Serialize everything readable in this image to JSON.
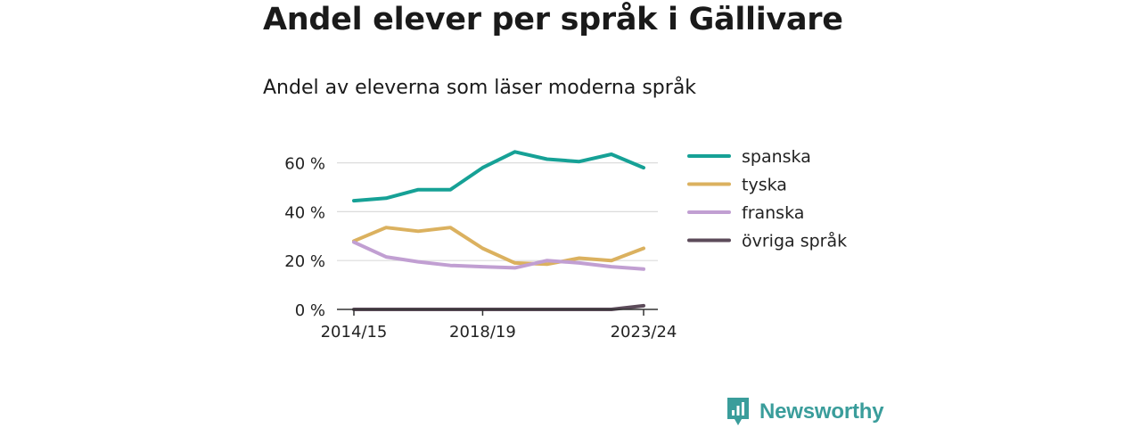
{
  "title": "Andel elever per språk i Gällivare",
  "subtitle": "Andel av eleverna som läser moderna språk",
  "brand": "Newsworthy",
  "chart_data": {
    "type": "line",
    "x": [
      "2014/15",
      "2015/16",
      "2016/17",
      "2017/18",
      "2018/19",
      "2019/20",
      "2020/21",
      "2021/22",
      "2022/23",
      "2023/24"
    ],
    "x_tick_labels": [
      "2014/15",
      "2018/19",
      "2023/24"
    ],
    "y_ticks": [
      0,
      20,
      40,
      60
    ],
    "y_tick_labels": [
      "0 %",
      "20 %",
      "40 %",
      "60 %"
    ],
    "ylim": [
      0,
      70
    ],
    "grid": true,
    "legend_position": "right",
    "series": [
      {
        "name": "spanska",
        "color": "#16a196",
        "values": [
          44.5,
          45.5,
          49,
          49,
          58,
          64.5,
          61.5,
          60.5,
          63.5,
          58
        ]
      },
      {
        "name": "tyska",
        "color": "#dbb15f",
        "values": [
          28,
          33.5,
          32,
          33.5,
          25,
          19,
          18.5,
          21,
          20,
          25
        ]
      },
      {
        "name": "franska",
        "color": "#c19fd2",
        "values": [
          27.5,
          21.5,
          19.5,
          18,
          17.5,
          17,
          20,
          19,
          17.5,
          16.5
        ]
      },
      {
        "name": "övriga språk",
        "color": "#5c4b5a",
        "values": [
          0,
          0,
          0,
          0,
          0,
          0,
          0,
          0,
          0,
          1.5
        ]
      }
    ]
  }
}
